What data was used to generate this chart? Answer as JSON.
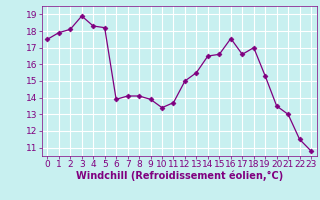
{
  "x": [
    0,
    1,
    2,
    3,
    4,
    5,
    6,
    7,
    8,
    9,
    10,
    11,
    12,
    13,
    14,
    15,
    16,
    17,
    18,
    19,
    20,
    21,
    22,
    23
  ],
  "y": [
    17.5,
    17.9,
    18.1,
    18.9,
    18.3,
    18.2,
    13.9,
    14.1,
    14.1,
    13.9,
    13.4,
    13.7,
    15.0,
    15.5,
    16.5,
    16.6,
    17.55,
    16.6,
    17.0,
    15.3,
    13.5,
    13.0,
    11.5,
    10.8
  ],
  "line_color": "#800080",
  "marker": "D",
  "marker_size": 2.5,
  "bg_color": "#c8f0f0",
  "grid_color": "#ffffff",
  "xlabel": "Windchill (Refroidissement éolien,°C)",
  "xlabel_color": "#800080",
  "tick_color": "#800080",
  "ylim": [
    10.5,
    19.5
  ],
  "xlim": [
    -0.5,
    23.5
  ],
  "yticks": [
    11,
    12,
    13,
    14,
    15,
    16,
    17,
    18,
    19
  ],
  "xticks": [
    0,
    1,
    2,
    3,
    4,
    5,
    6,
    7,
    8,
    9,
    10,
    11,
    12,
    13,
    14,
    15,
    16,
    17,
    18,
    19,
    20,
    21,
    22,
    23
  ],
  "tick_fontsize": 6.5,
  "xlabel_fontsize": 7.0
}
